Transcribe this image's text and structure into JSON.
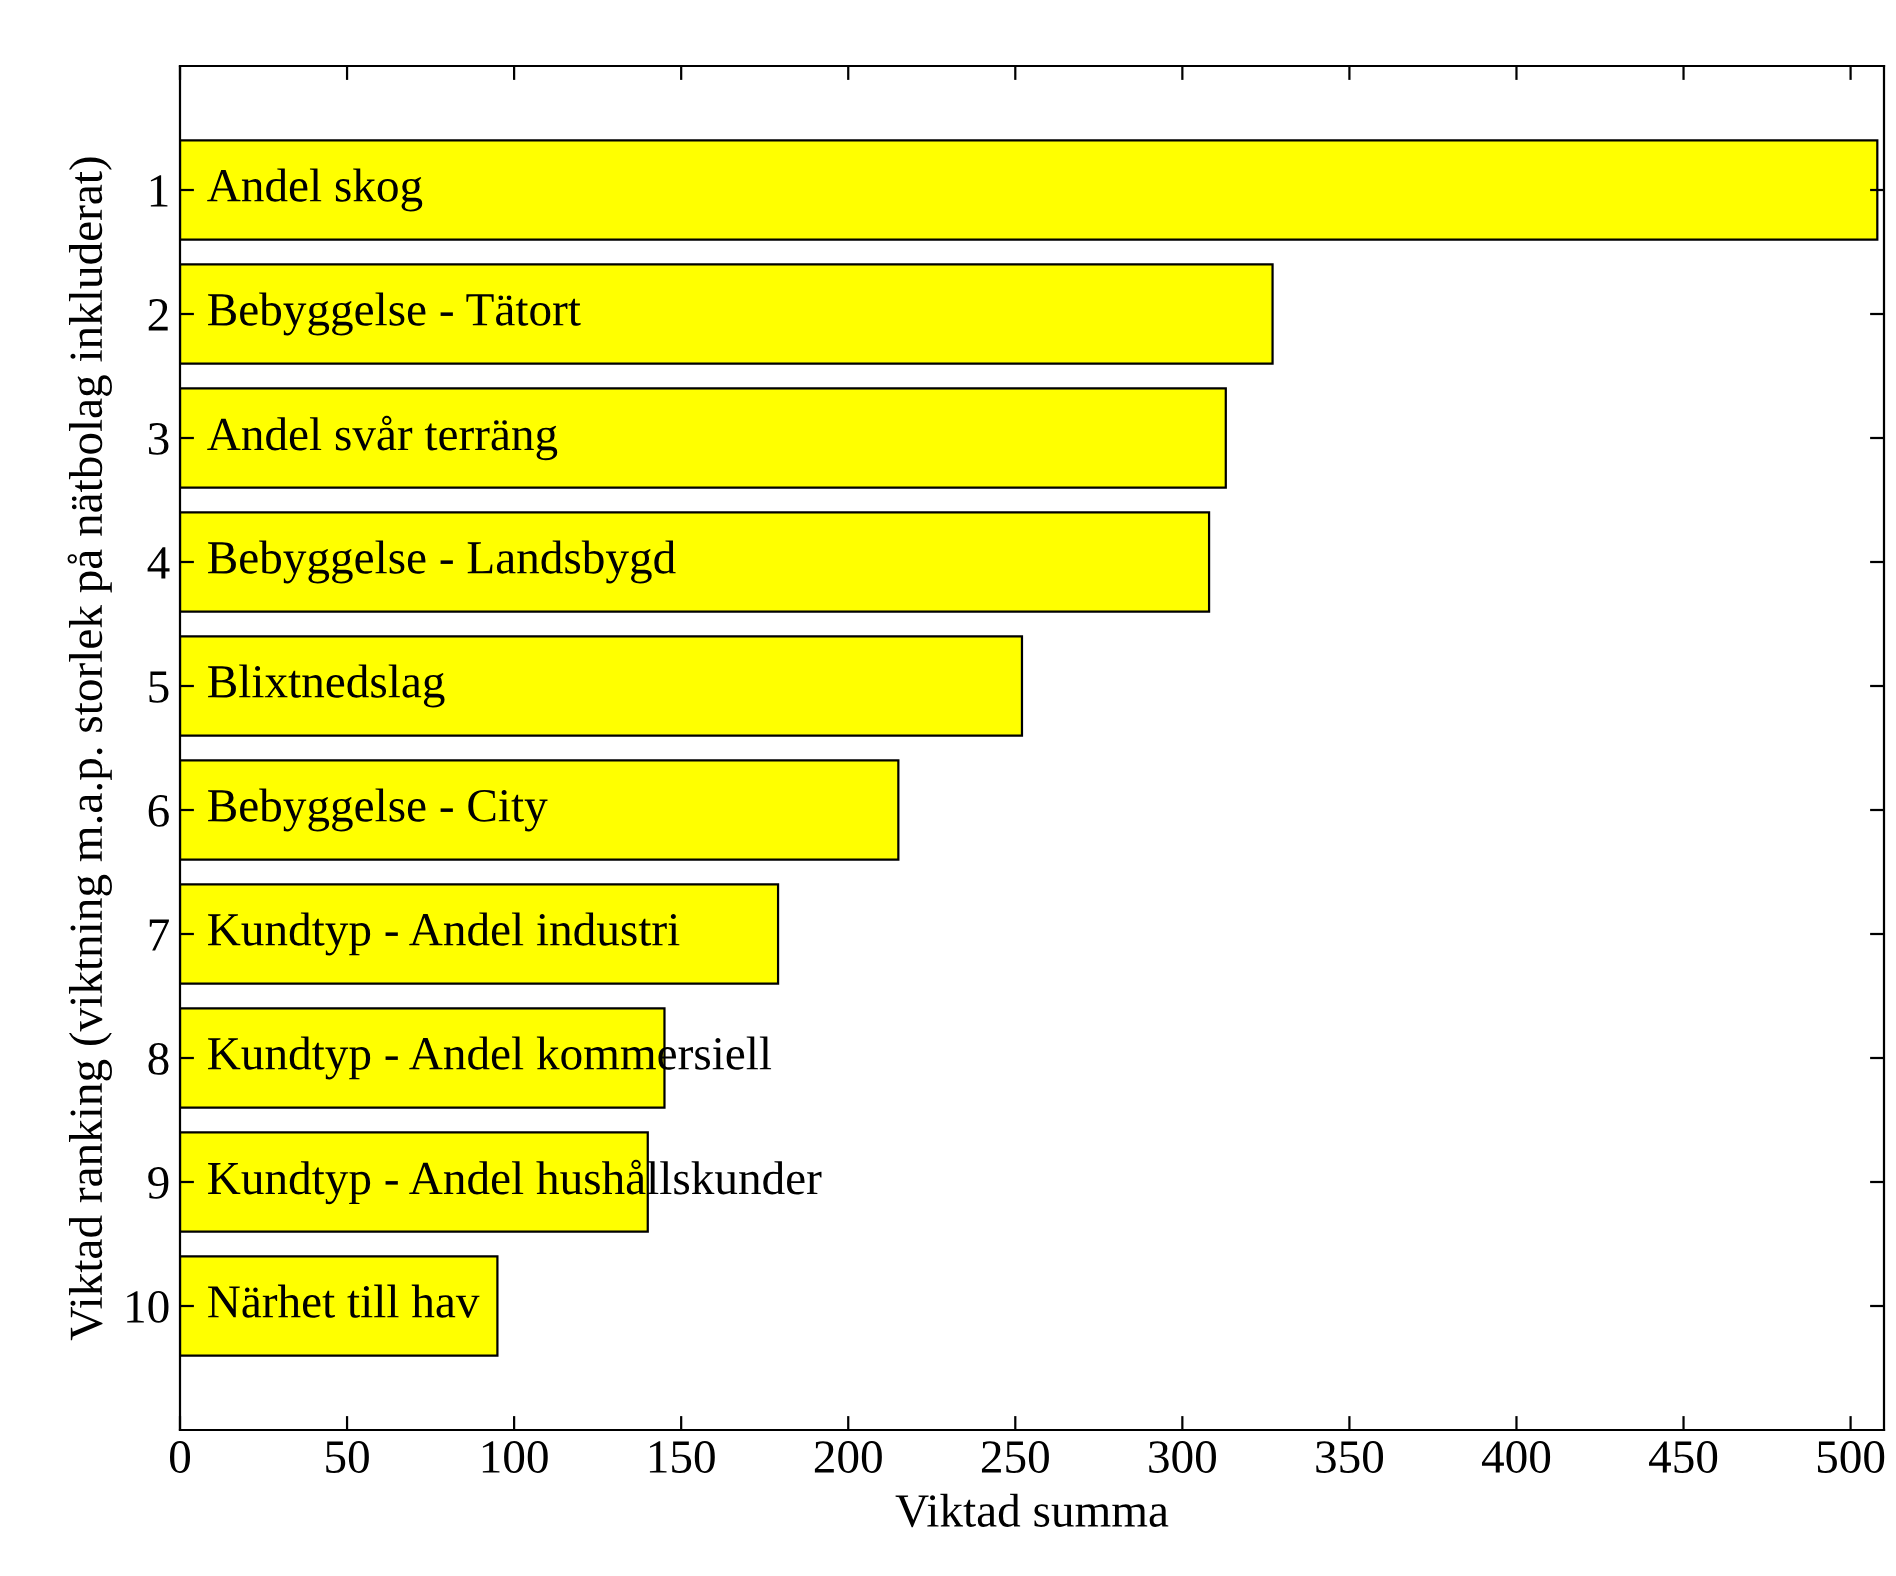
{
  "chart_data": {
    "type": "bar",
    "orientation": "horizontal",
    "xlabel": "Viktad summa",
    "ylabel": "Viktad ranking (viktning m.a.p. storlek på nätbolag inkluderat)",
    "categories": [
      "1",
      "2",
      "3",
      "4",
      "5",
      "6",
      "7",
      "8",
      "9",
      "10"
    ],
    "values": [
      508,
      327,
      313,
      308,
      252,
      215,
      179,
      145,
      140,
      95
    ],
    "color": "#ffff00",
    "xlim": [
      0,
      510
    ],
    "xticks": [
      0,
      50,
      100,
      150,
      200,
      250,
      300,
      350,
      400,
      450,
      500
    ],
    "grid": false,
    "legend": false,
    "annotations": [
      "Andel skog",
      "Bebyggelse - Tätort",
      "Andel svår terräng",
      "Bebyggelse - Landsbygd",
      "Blixtnedslag",
      "Bebyggelse - City",
      "Kundtyp - Andel industri",
      "Kundtyp - Andel kommersiell",
      "Kundtyp - Andel hushållskunder",
      "Närhet till hav"
    ]
  }
}
